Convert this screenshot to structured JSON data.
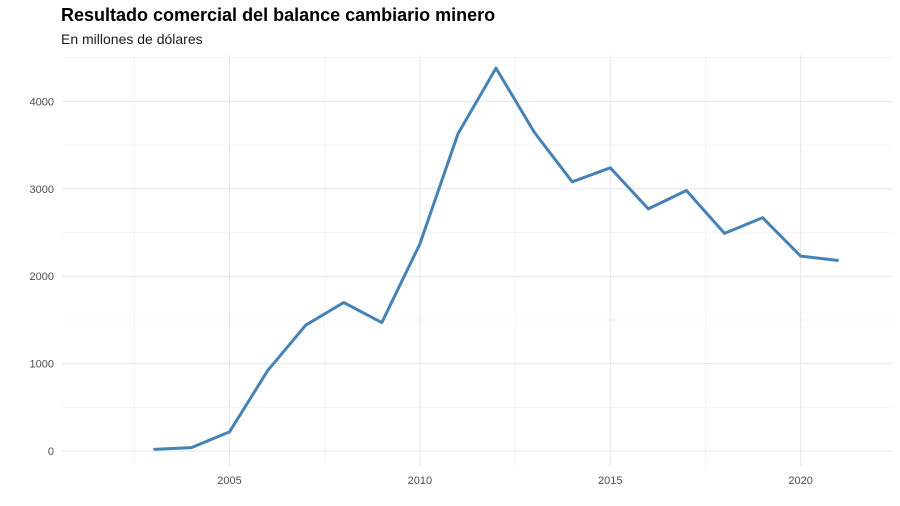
{
  "chart_data": {
    "type": "line",
    "title": "Resultado comercial del balance cambiario minero",
    "subtitle": "En millones de dólares",
    "xlabel": "",
    "ylabel": "",
    "x": [
      2003,
      2004,
      2005,
      2006,
      2007,
      2008,
      2009,
      2010,
      2011,
      2012,
      2013,
      2014,
      2015,
      2016,
      2017,
      2018,
      2019,
      2020,
      2021
    ],
    "series": [
      {
        "values": [
          20,
          40,
          220,
          920,
          1440,
          1700,
          1470,
          2370,
          3630,
          4380,
          3650,
          3080,
          3240,
          2770,
          2980,
          2490,
          2670,
          2230,
          2180
        ]
      }
    ],
    "xlim": [
      2000.6,
      2022.4
    ],
    "ylim": [
      -170,
      4530
    ],
    "x_ticks": [
      "2005",
      "2010",
      "2015",
      "2020"
    ],
    "y_ticks": [
      "0",
      "1000",
      "2000",
      "3000",
      "4000"
    ],
    "grid": true,
    "line_color": "#4682B4"
  }
}
